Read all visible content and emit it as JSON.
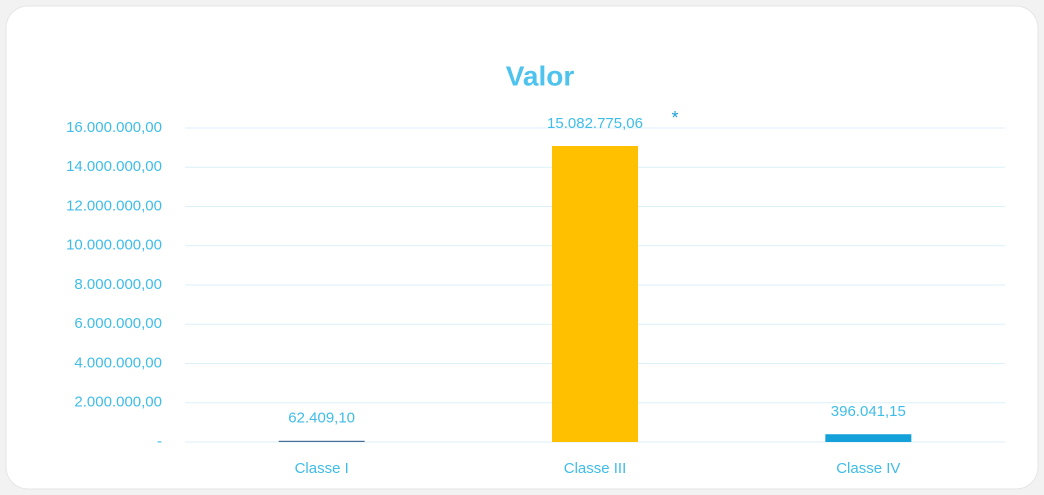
{
  "chart_data": {
    "type": "bar",
    "title": "Valor",
    "categories": [
      "Classe I",
      "Classe III",
      "Classe IV"
    ],
    "values": [
      62409.1,
      15082775.06,
      396041.15
    ],
    "value_labels": [
      "62.409,10",
      "15.082.775,06",
      "396.041,15"
    ],
    "colors": [
      "#4a6f96",
      "#ffc000",
      "#14a0d8"
    ],
    "annotation": "*",
    "ylim": [
      0,
      16000000
    ],
    "yticks": [
      {
        "value": 0,
        "label": "-"
      },
      {
        "value": 2000000,
        "label": "2.000.000,00"
      },
      {
        "value": 4000000,
        "label": "4.000.000,00"
      },
      {
        "value": 6000000,
        "label": "6.000.000,00"
      },
      {
        "value": 8000000,
        "label": "8.000.000,00"
      },
      {
        "value": 10000000,
        "label": "10.000.000,00"
      },
      {
        "value": 12000000,
        "label": "12.000.000,00"
      },
      {
        "value": 14000000,
        "label": "14.000.000,00"
      },
      {
        "value": 16000000,
        "label": "16.000.000,00"
      }
    ],
    "grid": true
  }
}
